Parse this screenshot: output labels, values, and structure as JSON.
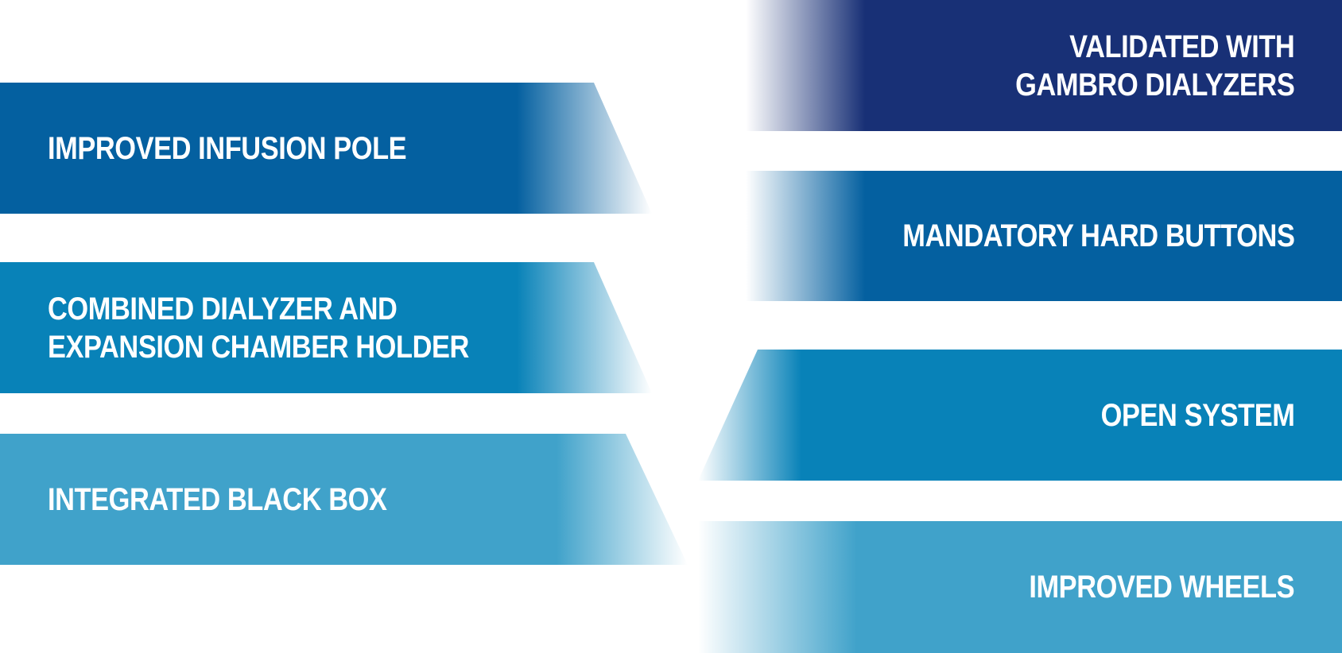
{
  "left_features": [
    {
      "label": "IMPROVED INFUSION POLE"
    },
    {
      "label": "COMBINED DIALYZER AND\nEXPANSION CHAMBER HOLDER"
    },
    {
      "label": "INTEGRATED BLACK BOX"
    }
  ],
  "right_features": [
    {
      "label": "VALIDATED WITH\nGAMBRO DIALYZERS"
    },
    {
      "label": "MANDATORY HARD BUTTONS"
    },
    {
      "label": "OPEN SYSTEM"
    },
    {
      "label": "IMPROVED WHEELS"
    }
  ],
  "colors": {
    "navy": "#183076",
    "dark_blue": "#0460a0",
    "medium_blue": "#0882b8",
    "light_blue": "#40a2ca",
    "text": "#ffffff"
  }
}
